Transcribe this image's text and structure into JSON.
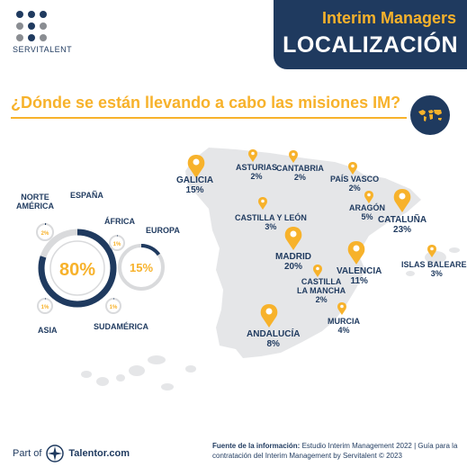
{
  "logo": {
    "text": "SERVITALENT"
  },
  "header": {
    "title_top": "Interim Managers",
    "title_main": "LOCALIZACIÓN"
  },
  "question": "¿Dónde se están llevando a cabo las misiones IM?",
  "regions": [
    {
      "name": "GALICIA",
      "pct": "15%",
      "size": "big"
    },
    {
      "name": "ASTURIAS",
      "pct": "2%",
      "size": "small"
    },
    {
      "name": "CANTABRIA",
      "pct": "2%",
      "size": "small"
    },
    {
      "name": "PAÍS VASCO",
      "pct": "2%",
      "size": "small"
    },
    {
      "name": "CASTILLA Y LEÓN",
      "pct": "3%",
      "size": "small"
    },
    {
      "name": "ARAGÓN",
      "pct": "5%",
      "size": "small"
    },
    {
      "name": "CATALUÑA",
      "pct": "23%",
      "size": "big"
    },
    {
      "name": "MADRID",
      "pct": "20%",
      "size": "big"
    },
    {
      "name": "VALENCIA",
      "pct": "11%",
      "size": "big"
    },
    {
      "name": "ISLAS BALEARES",
      "pct": "3%",
      "size": "small"
    },
    {
      "name": "CASTILLA\nLA MANCHA",
      "pct": "2%",
      "size": "small"
    },
    {
      "name": "MURCIA",
      "pct": "4%",
      "size": "small"
    },
    {
      "name": "ANDALUCÍA",
      "pct": "8%",
      "size": "big"
    }
  ],
  "continents": {
    "espana": {
      "label": "ESPAÑA",
      "value_text": "80%",
      "value": 0.8
    },
    "europa": {
      "label": "EUROPA",
      "value_text": "15%",
      "value": 0.15
    },
    "norte_america": {
      "label": "NORTE\nAMÉRICA",
      "value_text": "2%",
      "value": 0.02
    },
    "africa": {
      "label": "ÁFRICA",
      "value_text": "1%",
      "value": 0.01
    },
    "asia": {
      "label": "ASIA",
      "value_text": "1%",
      "value": 0.01
    },
    "sudamerica": {
      "label": "SUDAMÉRICA",
      "value_text": "1%",
      "value": 0.01
    }
  },
  "footer": {
    "part_of": "Part of",
    "brand": "Talentor.com",
    "source_label": "Fuente de la información:",
    "source_text": " Estudio Interim Management 2022 | Guía para la contratación del Interim Management by Servitalent © 2023"
  },
  "colors": {
    "navy": "#1f3a5f",
    "gold": "#f7b22b",
    "map_gray": "#e5e6e8",
    "ring_gray": "#d9dadc"
  }
}
